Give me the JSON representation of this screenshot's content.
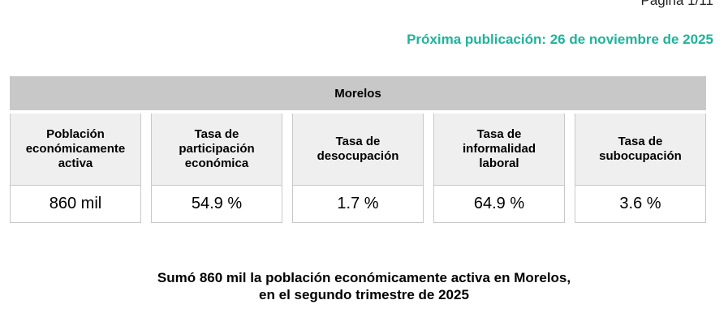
{
  "colors": {
    "accent": "#1fb39a",
    "header_bg": "#c8c8c8",
    "label_bg": "#efefef"
  },
  "page_number": "Página 1/11",
  "next_publication": "Próxima publicación: 26 de noviembre de 2025",
  "table": {
    "state": "Morelos",
    "indicators": [
      {
        "label": "Población\neconómicamente\nactiva",
        "value": "860 mil"
      },
      {
        "label": "Tasa de\nparticipación\neconómica",
        "value": "54.9 %"
      },
      {
        "label": "Tasa de\ndesocupación",
        "value": "1.7 %"
      },
      {
        "label": "Tasa de\ninformalidad\nlaboral",
        "value": "64.9 %"
      },
      {
        "label": "Tasa de\nsubocupación",
        "value": "3.6 %"
      }
    ]
  },
  "headline": "Sumó 860 mil la población económicamente activa en Morelos,\nen el segundo trimestre de 2025"
}
